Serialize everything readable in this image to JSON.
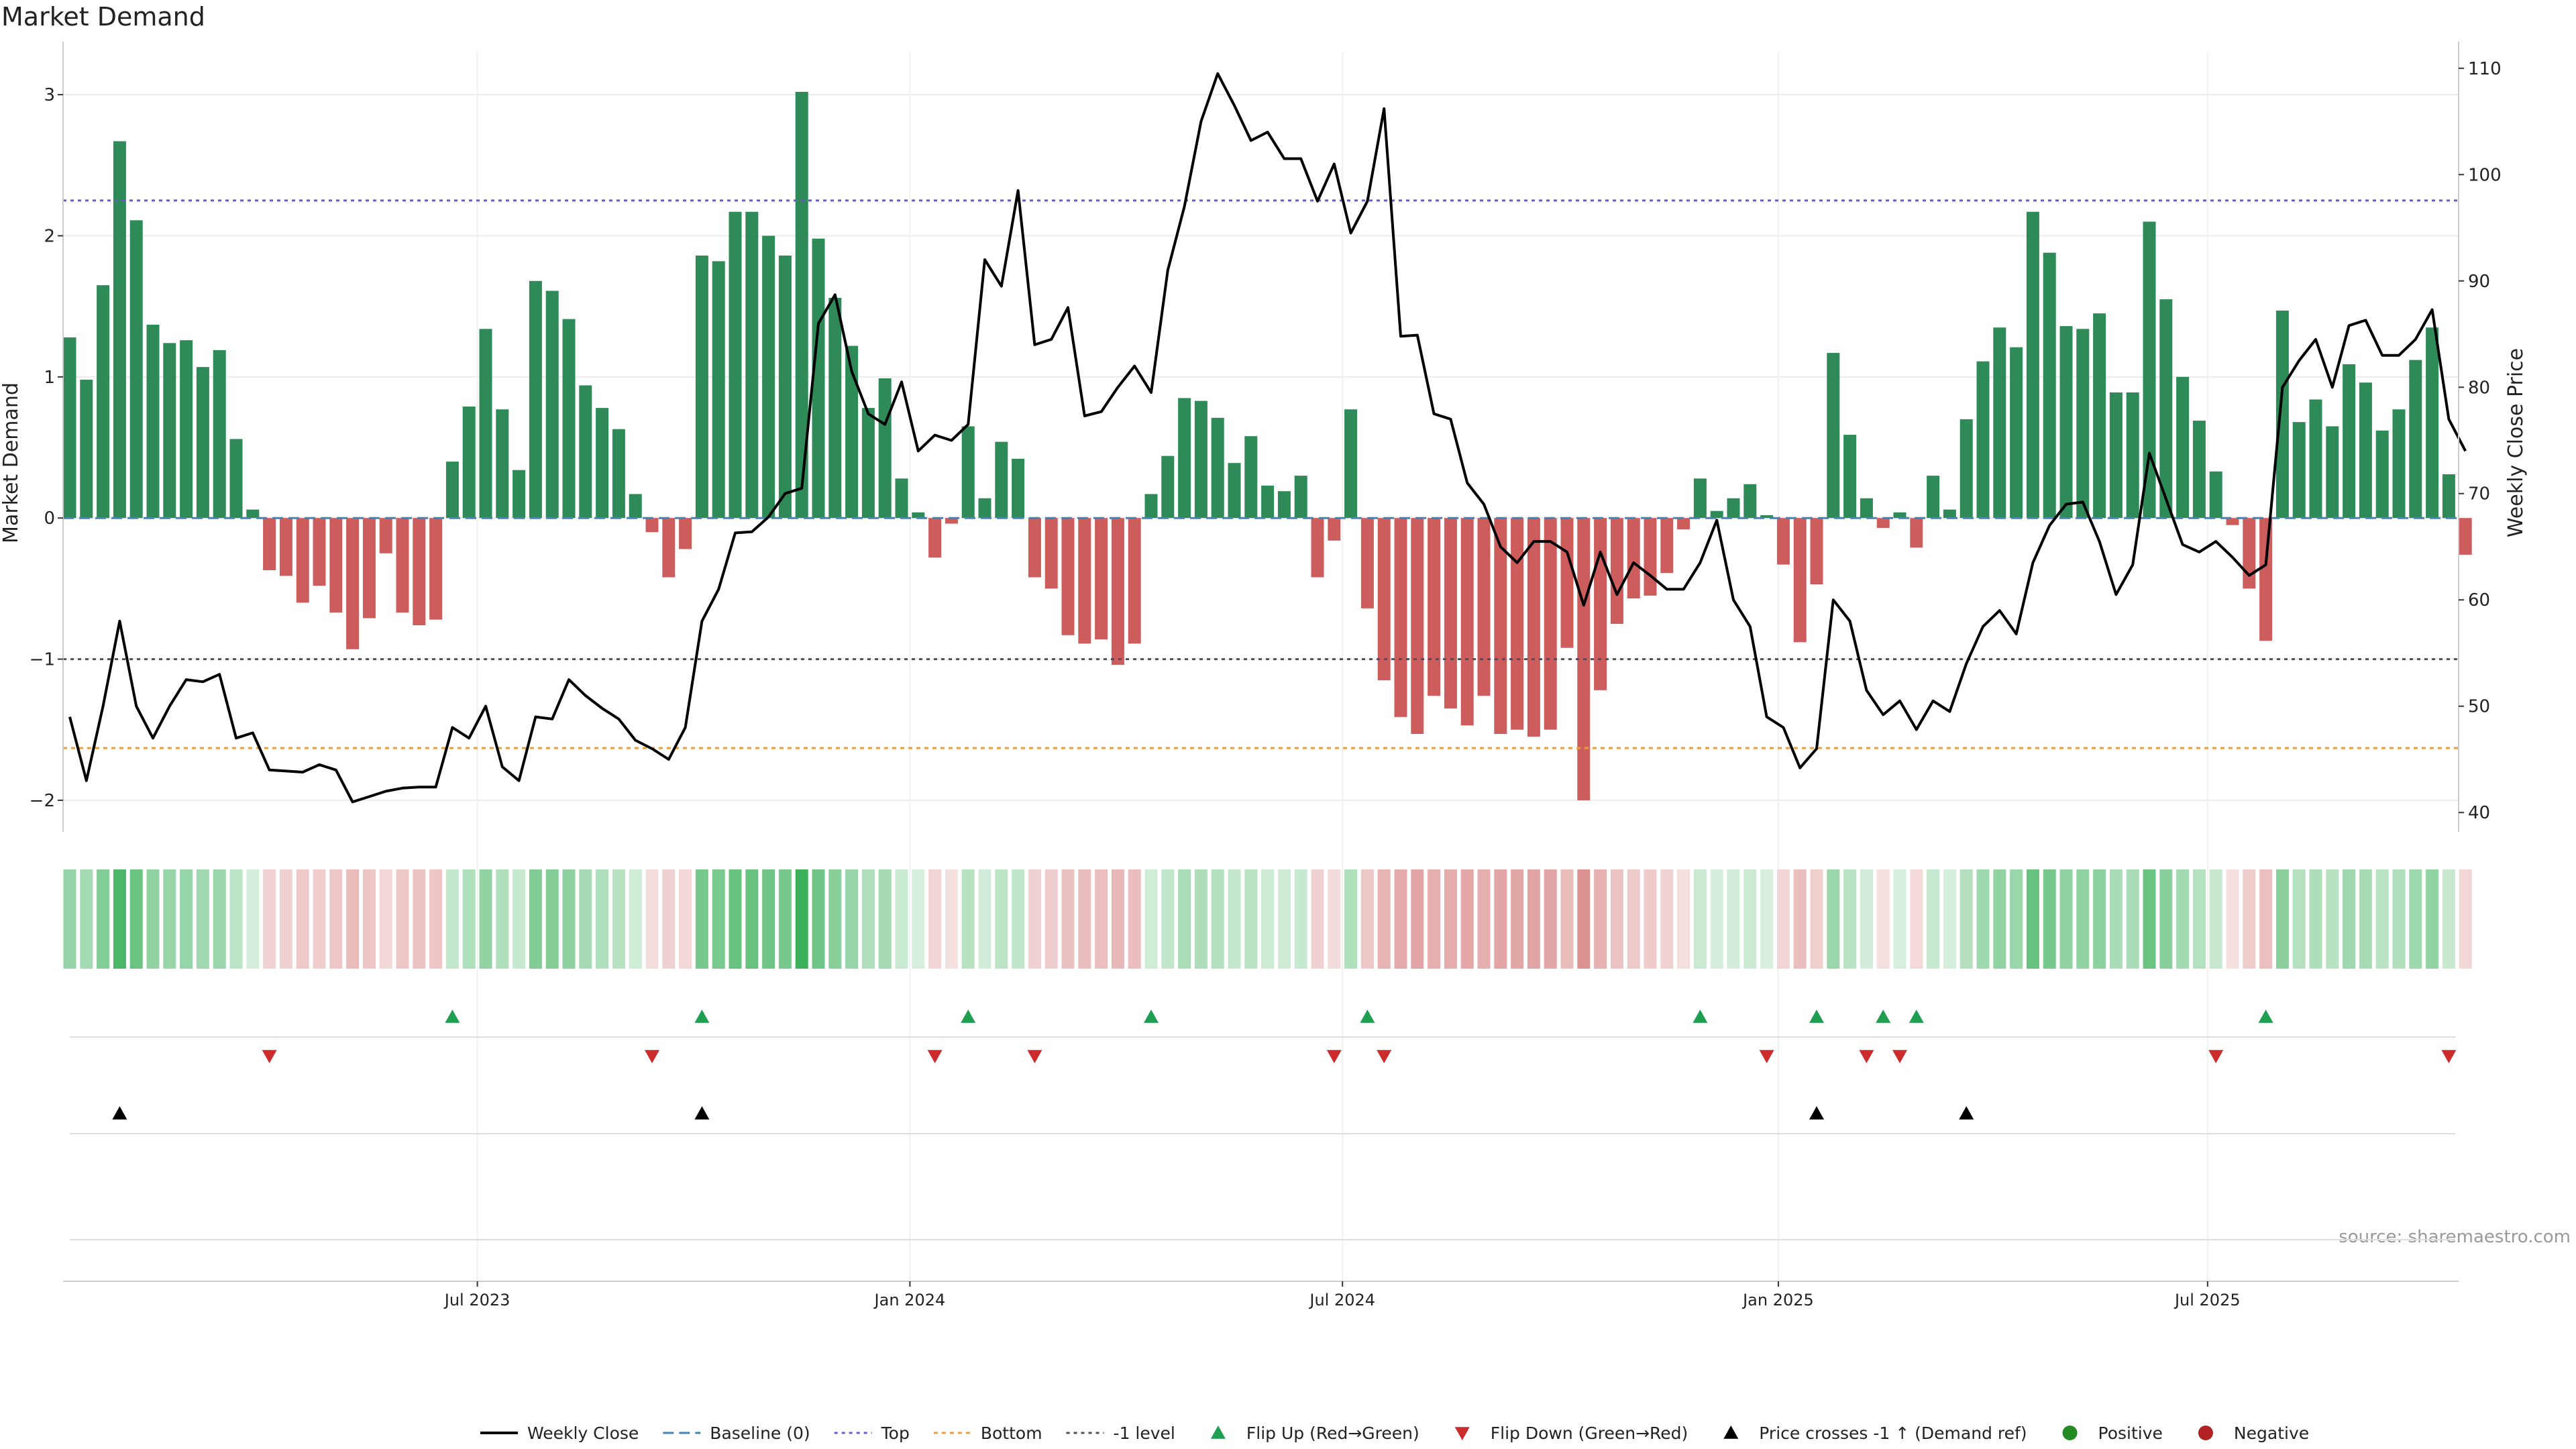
{
  "chart_data": {
    "type": "bar",
    "title": "Market Demand",
    "ylabel": "Market Demand",
    "y2label": "Weekly Close Price",
    "ylim": [
      -2.2,
      3.3
    ],
    "y2lim": [
      38.5,
      111.5
    ],
    "yticks": [
      3,
      2,
      1,
      0,
      -1,
      -2
    ],
    "y2ticks": [
      110,
      100,
      90,
      80,
      70,
      60,
      50,
      40
    ],
    "x_tick_labels": [
      "Jul 2023",
      "Jan 2024",
      "Jul 2024",
      "Jan 2025",
      "Jul 2025"
    ],
    "reference_lines": {
      "top": 2.25,
      "bottom": -1.63,
      "minus_one": -1.0,
      "baseline": 0
    },
    "colors": {
      "positive": "#2e8b57",
      "negative": "#cd5c5c",
      "price": "#000000",
      "top": "#6a5acd",
      "bottom": "#e69f3c",
      "minus_one": "#4d4d66",
      "baseline": "#4682b4",
      "flip_up": "#1e9e50",
      "flip_down": "#cc2b2b",
      "cross": "#000000",
      "positive_dot": "#228b22",
      "negative_dot": "#b22222"
    },
    "series": [
      {
        "name": "Weekly Close",
        "kind": "line",
        "values": [
          49,
          43,
          50,
          58,
          50,
          47,
          50,
          52.5,
          52.3,
          53,
          47,
          47.5,
          44,
          43.9,
          43.8,
          44.5,
          44,
          41,
          41.5,
          42,
          42.3,
          42.4,
          42.4,
          48,
          47,
          50,
          44.3,
          43,
          49,
          48.8,
          52.5,
          51,
          49.8,
          48.8,
          46.8,
          46,
          45,
          48,
          58,
          61,
          66.3,
          66.4,
          67.8,
          70,
          70.5,
          86,
          88.7,
          81.5,
          77.5,
          76.5,
          80.5,
          74,
          75.5,
          75,
          76.5,
          92,
          89.5,
          98.5,
          84,
          84.5,
          87.5,
          77.3,
          77.7,
          80,
          82,
          79.5,
          91,
          97,
          105,
          109.5,
          106.5,
          103.2,
          104,
          101.5,
          101.5,
          97.5,
          101,
          94.5,
          97.5,
          106.2,
          84.8,
          84.9,
          77.5,
          77,
          71,
          69,
          65,
          63.5,
          65.5,
          65.5,
          64.5,
          59.5,
          64.5,
          60.5,
          63.5,
          62.3,
          61,
          61,
          63.5,
          67.5,
          60,
          57.5,
          49,
          48,
          44.2,
          46,
          60,
          58,
          51.5,
          49.2,
          50.5,
          47.8,
          50.5,
          49.5,
          54,
          57.5,
          59,
          56.8,
          63.5,
          67,
          69,
          69.2,
          65.5,
          60.5,
          63.3,
          73.8,
          69.5,
          65.2,
          64.5,
          65.5,
          64,
          62.3,
          63.3,
          80,
          82.5,
          84.5,
          80,
          85.8,
          86.3,
          83,
          83,
          84.5,
          87.3,
          77,
          74
        ]
      },
      {
        "name": "Market Demand",
        "kind": "bar",
        "values": [
          1.28,
          0.98,
          1.65,
          2.67,
          2.11,
          1.37,
          1.24,
          1.26,
          1.07,
          1.19,
          0.56,
          0.06,
          -0.37,
          -0.41,
          -0.6,
          -0.48,
          -0.67,
          -0.93,
          -0.71,
          -0.25,
          -0.67,
          -0.76,
          -0.72,
          0.4,
          0.79,
          1.34,
          0.77,
          0.34,
          1.68,
          1.61,
          1.41,
          0.94,
          0.78,
          0.63,
          0.17,
          -0.1,
          -0.42,
          -0.22,
          1.86,
          1.82,
          2.17,
          2.17,
          2.0,
          1.86,
          3.02,
          1.98,
          1.56,
          1.22,
          0.78,
          0.99,
          0.28,
          0.04,
          -0.28,
          -0.04,
          0.65,
          0.14,
          0.54,
          0.42,
          -0.42,
          -0.5,
          -0.83,
          -0.89,
          -0.86,
          -1.04,
          -0.89,
          0.17,
          0.44,
          0.85,
          0.83,
          0.71,
          0.39,
          0.58,
          0.23,
          0.19,
          0.3,
          -0.42,
          -0.16,
          0.77,
          -0.64,
          -1.15,
          -1.41,
          -1.53,
          -1.26,
          -1.35,
          -1.47,
          -1.26,
          -1.53,
          -1.5,
          -1.55,
          -1.5,
          -0.92,
          -2.0,
          -1.22,
          -0.75,
          -0.57,
          -0.55,
          -0.39,
          -0.08,
          0.28,
          0.05,
          0.14,
          0.24,
          0.02,
          -0.33,
          -0.88,
          -0.47,
          1.17,
          0.59,
          0.14,
          -0.07,
          0.04,
          -0.21,
          0.3,
          0.06,
          0.7,
          1.11,
          1.35,
          1.21,
          2.17,
          1.88,
          1.36,
          1.34,
          1.45,
          0.89,
          0.89,
          2.1,
          1.55,
          1.0,
          0.69,
          0.33,
          -0.05,
          -0.5,
          -0.87,
          1.47,
          0.68,
          0.84,
          0.65,
          1.09,
          0.96,
          0.62,
          0.77,
          1.12,
          1.35,
          0.31,
          -0.26
        ]
      }
    ],
    "flip_up_weeks": [
      23,
      38,
      54,
      65,
      78,
      98,
      105,
      109,
      111,
      132
    ],
    "flip_down_weeks": [
      12,
      35,
      52,
      58,
      76,
      79,
      102,
      108,
      110,
      129,
      143
    ],
    "cross_up_weeks": [
      3,
      38,
      105,
      114
    ],
    "source_note": "source: sharemaestro.com",
    "legend": [
      {
        "label": "Weekly Close",
        "kind": "line"
      },
      {
        "label": "Baseline (0)",
        "kind": "dash-baseline"
      },
      {
        "label": "Top",
        "kind": "dot-top"
      },
      {
        "label": "Bottom",
        "kind": "dot-bottom"
      },
      {
        "label": "-1 level",
        "kind": "dot-minus"
      },
      {
        "label": "Flip Up (Red→Green)",
        "kind": "tri-up-green"
      },
      {
        "label": "Flip Down (Green→Red)",
        "kind": "tri-down-red"
      },
      {
        "label": "Price crosses -1 ↑ (Demand ref)",
        "kind": "tri-up-black"
      },
      {
        "label": "Positive",
        "kind": "dot-green"
      },
      {
        "label": "Negative",
        "kind": "dot-red"
      }
    ],
    "legend_position": "bottom-center",
    "grid": true
  }
}
